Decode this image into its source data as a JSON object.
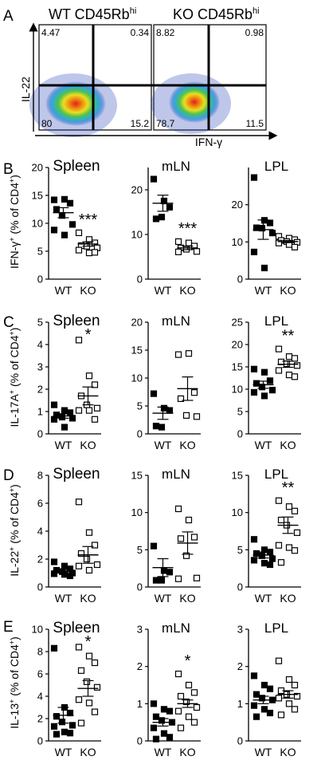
{
  "panel_letters": [
    "A",
    "B",
    "C",
    "D",
    "E"
  ],
  "flow": {
    "titles": [
      "WT CD45Rb",
      "KO CD45Rb"
    ],
    "title_superscript": "hi",
    "y_axis_label": "IL-22",
    "x_axis_label": "IFN-γ",
    "plots": [
      {
        "q_ul": "4.47",
        "q_ur": "0.34",
        "q_ll": "80",
        "q_lr": "15.2"
      },
      {
        "q_ul": "8.82",
        "q_ur": "0.98",
        "q_ll": "78.7",
        "q_lr": "11.5"
      }
    ]
  },
  "chart_data": [
    {
      "type": "scatter",
      "panel": "B",
      "title": "Spleen",
      "ylabel": "IFN-γ+ (% of CD4+)",
      "categories": [
        "WT",
        "KO"
      ],
      "ylim": [
        0,
        20
      ],
      "yticks": [
        "0",
        "5",
        "10",
        "15",
        "20"
      ],
      "annotation": "***",
      "series": [
        {
          "name": "WT",
          "marker": "filled-square",
          "values": [
            14.2,
            14.3,
            13.6,
            12.5,
            11.4,
            9.8,
            8.8,
            7.9
          ],
          "mean": 11.9,
          "sem": 0.9
        },
        {
          "name": "KO",
          "marker": "open-square",
          "values": [
            8.3,
            7.1,
            6.5,
            6.0,
            5.9,
            5.6,
            5.2,
            4.7,
            4.8
          ],
          "mean": 6.3,
          "sem": 0.4
        }
      ]
    },
    {
      "type": "scatter",
      "panel": "B",
      "title": "mLN",
      "ylabel": "",
      "categories": [
        "WT",
        "KO"
      ],
      "ylim": [
        0,
        25
      ],
      "yticks": [
        "0",
        "10",
        "20"
      ],
      "annotation": "***",
      "series": [
        {
          "name": "WT",
          "marker": "filled-square",
          "values": [
            22.4,
            17.5,
            16.1,
            13.5,
            13.9
          ],
          "mean": 17.0,
          "sem": 1.8
        },
        {
          "name": "KO",
          "marker": "open-square",
          "values": [
            8.4,
            8.1,
            7.4,
            7.0,
            6.7,
            6.2,
            6.1
          ],
          "mean": 7.0,
          "sem": 0.4
        }
      ]
    },
    {
      "type": "scatter",
      "panel": "B",
      "title": "LPL",
      "ylabel": "",
      "categories": [
        "WT",
        "KO"
      ],
      "ylim": [
        0,
        30
      ],
      "yticks": [
        "0",
        "10",
        "20"
      ],
      "annotation": "",
      "series": [
        {
          "name": "WT",
          "marker": "filled-square",
          "values": [
            27.3,
            15.8,
            15.1,
            13.8,
            13.7,
            12.4,
            7.3,
            3.0
          ],
          "mean": 13.3,
          "sem": 2.6
        },
        {
          "name": "KO",
          "marker": "open-square",
          "values": [
            11.5,
            11.0,
            10.6,
            10.4,
            10.1,
            9.9,
            9.7,
            9.3,
            8.6
          ],
          "mean": 10.1,
          "sem": 0.3
        }
      ]
    },
    {
      "type": "scatter",
      "panel": "C",
      "title": "Spleen",
      "ylabel": "IL-17A+ (% of CD4+)",
      "categories": [
        "WT",
        "KO"
      ],
      "ylim": [
        0,
        5
      ],
      "yticks": [
        "0",
        "1",
        "2",
        "3",
        "4",
        "5"
      ],
      "annotation": "*",
      "series": [
        {
          "name": "WT",
          "marker": "filled-square",
          "values": [
            1.3,
            1.05,
            0.95,
            0.85,
            0.75,
            0.7,
            0.65,
            0.3
          ],
          "mean": 0.8,
          "sem": 0.1
        },
        {
          "name": "KO",
          "marker": "open-square",
          "values": [
            4.2,
            2.6,
            2.2,
            1.7,
            1.3,
            1.15,
            1.05,
            1.05,
            0.65
          ],
          "mean": 1.7,
          "sem": 0.4
        }
      ]
    },
    {
      "type": "scatter",
      "panel": "C",
      "title": "mLN",
      "ylabel": "",
      "categories": [
        "WT",
        "KO"
      ],
      "ylim": [
        0,
        20
      ],
      "yticks": [
        "0",
        "5",
        "10",
        "15",
        "20"
      ],
      "annotation": "",
      "series": [
        {
          "name": "WT",
          "marker": "filled-square",
          "values": [
            7.2,
            4.6,
            4.2,
            1.4,
            1.2
          ],
          "mean": 3.7,
          "sem": 1.1
        },
        {
          "name": "KO",
          "marker": "open-square",
          "values": [
            14.2,
            14.4,
            7.4,
            6.3,
            3.3,
            3.1
          ],
          "mean": 8.1,
          "sem": 2.1
        }
      ]
    },
    {
      "type": "scatter",
      "panel": "C",
      "title": "LPL",
      "ylabel": "",
      "categories": [
        "WT",
        "KO"
      ],
      "ylim": [
        0,
        25
      ],
      "yticks": [
        "0",
        "5",
        "10",
        "15",
        "20",
        "25"
      ],
      "annotation": "**",
      "series": [
        {
          "name": "WT",
          "marker": "filled-square",
          "values": [
            14.5,
            13.8,
            11.9,
            11.3,
            10.5,
            9.8,
            9.3,
            8.5
          ],
          "mean": 11.0,
          "sem": 0.8
        },
        {
          "name": "KO",
          "marker": "open-square",
          "values": [
            19.0,
            17.3,
            16.9,
            16.1,
            15.7,
            15.3,
            14.2,
            13.2,
            12.8
          ],
          "mean": 15.6,
          "sem": 0.7
        }
      ]
    },
    {
      "type": "scatter",
      "panel": "D",
      "title": "Spleen",
      "ylabel": "IL-22+ (% of CD4+)",
      "categories": [
        "WT",
        "KO"
      ],
      "ylim": [
        0,
        8
      ],
      "yticks": [
        "0",
        "2",
        "4",
        "6",
        "8"
      ],
      "annotation": "",
      "series": [
        {
          "name": "WT",
          "marker": "filled-square",
          "values": [
            1.8,
            1.5,
            1.3,
            1.2,
            1.1,
            1.0,
            0.95,
            0.9,
            0.8
          ],
          "mean": 1.2,
          "sem": 0.1
        },
        {
          "name": "KO",
          "marker": "open-square",
          "values": [
            6.1,
            3.9,
            3.0,
            2.4,
            2.0,
            1.6,
            1.5,
            1.2
          ],
          "mean": 2.3,
          "sem": 0.6
        }
      ]
    },
    {
      "type": "scatter",
      "panel": "D",
      "title": "mLN",
      "ylabel": "",
      "categories": [
        "WT",
        "KO"
      ],
      "ylim": [
        0,
        15
      ],
      "yticks": [
        "0",
        "5",
        "10",
        "15"
      ],
      "annotation": "",
      "series": [
        {
          "name": "WT",
          "marker": "filled-square",
          "values": [
            5.5,
            2.2,
            2.0,
            0.9,
            0.9
          ],
          "mean": 2.6,
          "sem": 1.2
        },
        {
          "name": "KO",
          "marker": "open-square",
          "values": [
            10.5,
            9.0,
            6.7,
            6.5,
            4.2,
            1.2,
            1.1
          ],
          "mean": 5.9,
          "sem": 1.5
        }
      ]
    },
    {
      "type": "scatter",
      "panel": "D",
      "title": "LPL",
      "ylabel": "",
      "categories": [
        "WT",
        "KO"
      ],
      "ylim": [
        0,
        15
      ],
      "yticks": [
        "0",
        "5",
        "10",
        "15"
      ],
      "annotation": "**",
      "series": [
        {
          "name": "WT",
          "marker": "filled-square",
          "values": [
            6.4,
            5.0,
            4.7,
            4.5,
            4.2,
            3.8,
            3.6,
            3.2,
            3.0
          ],
          "mean": 4.3,
          "sem": 0.4
        },
        {
          "name": "KO",
          "marker": "open-square",
          "values": [
            11.6,
            10.8,
            10.2,
            9.0,
            8.3,
            7.3,
            5.6,
            5.3,
            4.9,
            3.3
          ],
          "mean": 8.3,
          "sem": 1.1
        }
      ]
    },
    {
      "type": "scatter",
      "panel": "E",
      "title": "Spleen",
      "ylabel": "IL-13+ (% of CD4+)",
      "categories": [
        "WT",
        "KO"
      ],
      "ylim": [
        0,
        10
      ],
      "yticks": [
        "0",
        "2",
        "4",
        "6",
        "8",
        "10"
      ],
      "annotation": "*",
      "series": [
        {
          "name": "WT",
          "marker": "filled-square",
          "values": [
            8.3,
            3.0,
            2.5,
            2.2,
            1.7,
            1.4,
            1.3,
            0.8,
            0.7,
            0.6
          ],
          "mean": 2.3,
          "sem": 0.7
        },
        {
          "name": "KO",
          "marker": "open-square",
          "values": [
            8.4,
            7.6,
            7.0,
            6.3,
            5.3,
            4.8,
            3.7,
            3.4,
            2.6,
            1.6
          ],
          "mean": 4.7,
          "sem": 0.7
        }
      ]
    },
    {
      "type": "scatter",
      "panel": "E",
      "title": "mLN",
      "ylabel": "",
      "categories": [
        "WT",
        "KO"
      ],
      "ylim": [
        0,
        3
      ],
      "yticks": [
        "0",
        "1",
        "2",
        "3"
      ],
      "annotation": "*",
      "series": [
        {
          "name": "WT",
          "marker": "filled-square",
          "values": [
            1.0,
            0.85,
            0.8,
            0.65,
            0.55,
            0.5,
            0.35,
            0.2,
            0.1,
            0.05
          ],
          "mean": 0.5,
          "sem": 0.1
        },
        {
          "name": "KO",
          "marker": "open-square",
          "values": [
            1.8,
            1.5,
            1.3,
            1.2,
            1.05,
            0.9,
            0.8,
            0.65,
            0.5,
            0.35
          ],
          "mean": 1.0,
          "sem": 0.1
        }
      ]
    },
    {
      "type": "scatter",
      "panel": "E",
      "title": "LPL",
      "ylabel": "",
      "categories": [
        "WT",
        "KO"
      ],
      "ylim": [
        0,
        3
      ],
      "yticks": [
        "0",
        "1",
        "2",
        "3"
      ],
      "annotation": "",
      "series": [
        {
          "name": "WT",
          "marker": "filled-square",
          "values": [
            1.75,
            1.5,
            1.4,
            1.25,
            1.15,
            1.1,
            0.95,
            0.85,
            0.75,
            0.65
          ],
          "mean": 1.1,
          "sem": 0.1
        },
        {
          "name": "KO",
          "marker": "open-square",
          "values": [
            2.15,
            1.65,
            1.5,
            1.35,
            1.25,
            1.2,
            1.15,
            1.0,
            0.85,
            0.7
          ],
          "mean": 1.25,
          "sem": 0.1
        }
      ]
    }
  ]
}
